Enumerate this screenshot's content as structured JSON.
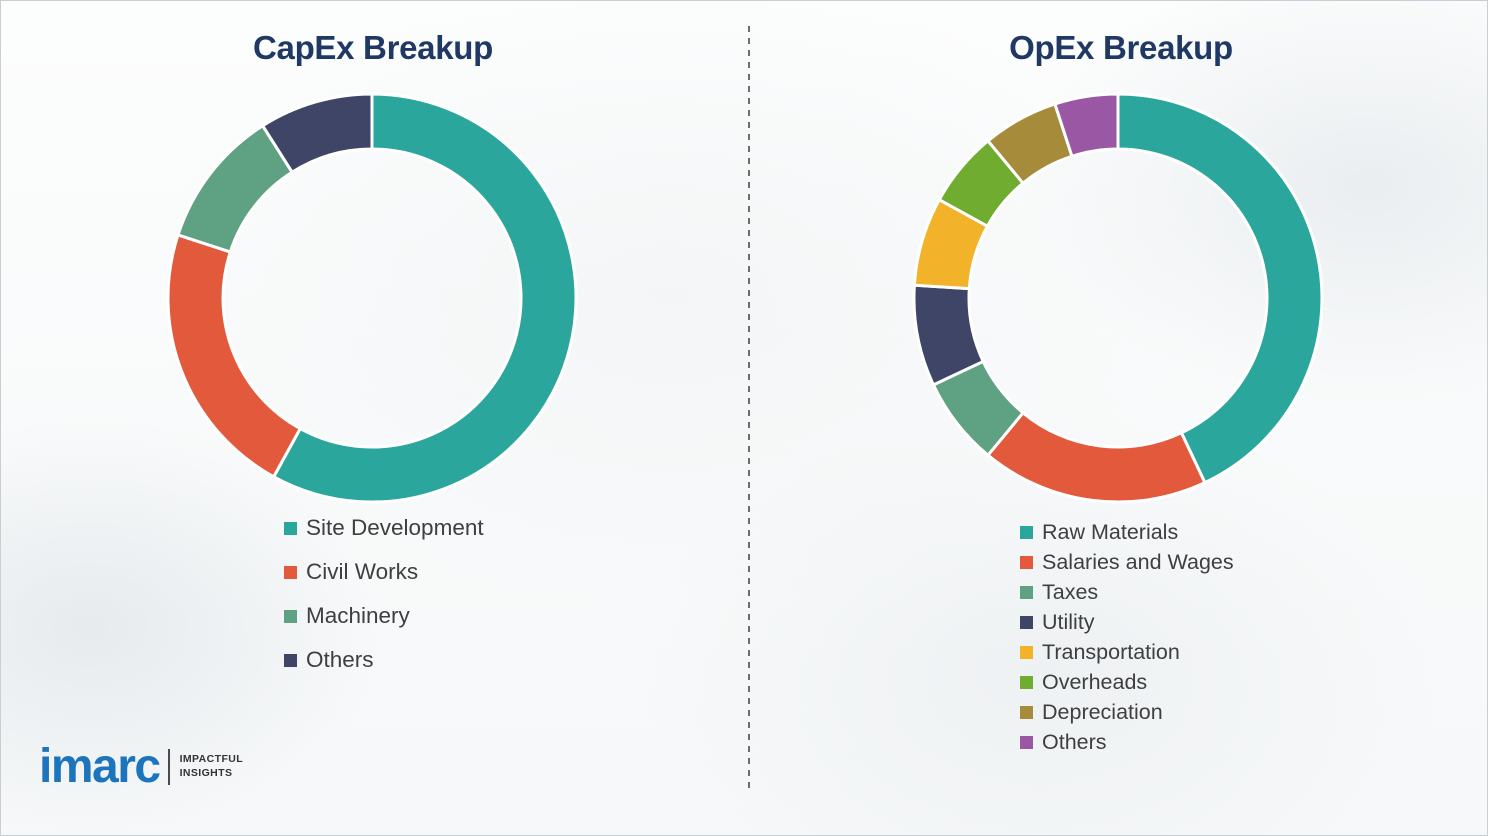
{
  "title_color": "#1F3864",
  "chart_data": [
    {
      "type": "pie",
      "subtype": "donut",
      "title": "CapEx Breakup",
      "labels": [
        "Site Development",
        "Civil Works",
        "Machinery",
        "Others"
      ],
      "values": [
        58,
        22,
        11,
        9
      ],
      "unit": "percent-estimated",
      "colors": [
        "#2BA69C",
        "#E2593C",
        "#5FA183",
        "#3E4566"
      ],
      "legend_position": "bottom-left",
      "start_angle_deg": 0,
      "direction": "clockwise"
    },
    {
      "type": "pie",
      "subtype": "donut",
      "title": "OpEx Breakup",
      "labels": [
        "Raw Materials",
        "Salaries and Wages",
        "Taxes",
        "Utility",
        "Transportation",
        "Overheads",
        "Depreciation",
        "Others"
      ],
      "values": [
        43,
        18,
        7,
        8,
        7,
        6,
        6,
        5
      ],
      "unit": "percent-estimated",
      "colors": [
        "#2BA69C",
        "#E2593C",
        "#5FA183",
        "#3E4566",
        "#F2B32B",
        "#6FAC2F",
        "#A68B3A",
        "#9A57A3"
      ],
      "legend_position": "bottom-left",
      "start_angle_deg": 0,
      "direction": "clockwise"
    }
  ],
  "logo": {
    "brand": "imarc",
    "brand_color": "#1C75BC",
    "tagline_line1": "IMPACTFUL",
    "tagline_line2": "INSIGHTS"
  }
}
